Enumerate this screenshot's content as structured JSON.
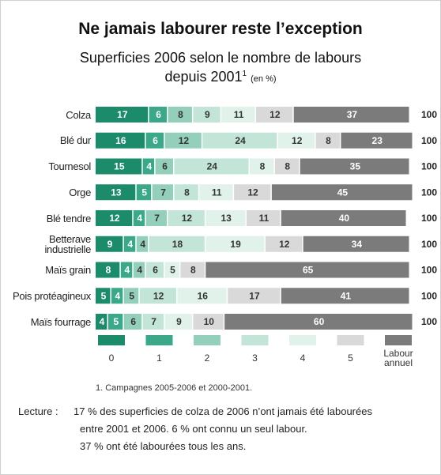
{
  "chart_data": {
    "type": "stacked_bar_horizontal",
    "title": "Ne jamais labourer reste l’exception",
    "subtitle": "Superficies 2006 selon le nombre de labours",
    "subtitle_line2": "depuis 2001",
    "subtitle_note": "1",
    "unit_label": "(en %)",
    "categories": [
      "Colza",
      "Blé dur",
      "Tournesol",
      "Orge",
      "Blé tendre",
      "Betterave industrielle",
      "Maïs grain",
      "Pois protéagineux",
      "Maïs fourrage"
    ],
    "series": [
      {
        "name": "0",
        "color": "#1b8b6b",
        "values": [
          17,
          16,
          15,
          13,
          12,
          9,
          8,
          5,
          4
        ]
      },
      {
        "name": "1",
        "color": "#3aa889",
        "values": [
          6,
          6,
          4,
          5,
          4,
          4,
          4,
          4,
          5
        ]
      },
      {
        "name": "2",
        "color": "#93cfbb",
        "values": [
          8,
          12,
          6,
          7,
          7,
          4,
          4,
          5,
          6
        ]
      },
      {
        "name": "3",
        "color": "#c2e5d8",
        "values": [
          9,
          24,
          24,
          8,
          12,
          18,
          6,
          12,
          7
        ]
      },
      {
        "name": "4",
        "color": "#e0f2ea",
        "values": [
          11,
          12,
          8,
          11,
          13,
          19,
          5,
          16,
          9
        ]
      },
      {
        "name": "5",
        "color": "#d9d9d9",
        "values": [
          12,
          8,
          8,
          12,
          11,
          12,
          8,
          17,
          10
        ]
      },
      {
        "name": "Labour annuel",
        "color": "#7b7b7b",
        "values": [
          37,
          23,
          35,
          45,
          40,
          34,
          65,
          41,
          60
        ]
      }
    ],
    "totals": [
      100,
      100,
      100,
      100,
      100,
      100,
      100,
      100,
      100
    ],
    "footnote": "1. Campagnes 2005-2006 et 2000-2001.",
    "lecture_label": "Lecture :",
    "lecture_lines": [
      "17 % des superficies de colza de 2006 n’ont jamais été labourées",
      "entre 2001 et 2006. 6 % ont connu un seul labour.",
      "37 % ont été labourées tous les ans."
    ]
  }
}
